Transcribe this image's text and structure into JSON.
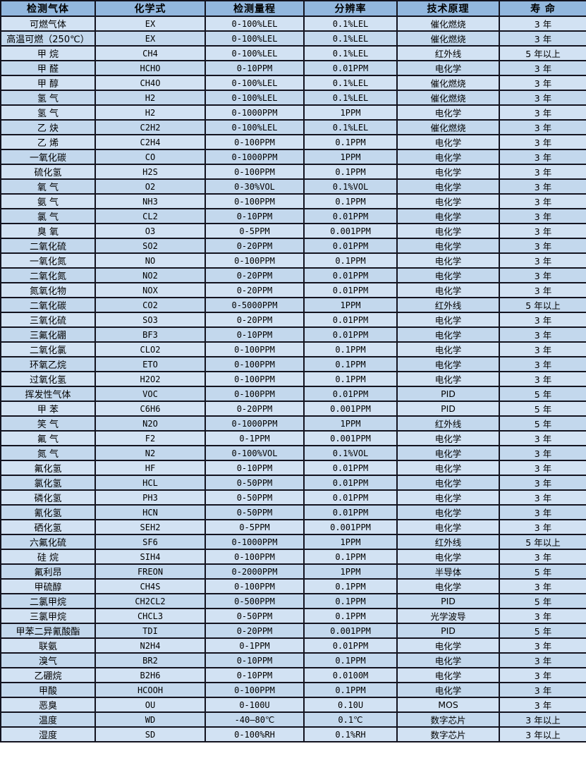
{
  "table": {
    "title": "gas-sensor-spec-table",
    "columns": [
      "检测气体",
      "化学式",
      "检测量程",
      "分辨率",
      "技术原理",
      "寿 命"
    ],
    "rows": [
      {
        "gas": "可燃气体",
        "formula": "EX",
        "range": "0-100%LEL",
        "resolution": "0.1%LEL",
        "principle": "催化燃烧",
        "lifespan": "3 年"
      },
      {
        "gas": "高温可燃（250℃）",
        "formula": "EX",
        "range": "0-100%LEL",
        "resolution": "0.1%LEL",
        "principle": "催化燃烧",
        "lifespan": "3 年"
      },
      {
        "gas": "甲 烷",
        "formula": "CH4",
        "range": "0-100%LEL",
        "resolution": "0.1%LEL",
        "principle": "红外线",
        "lifespan": "5 年以上"
      },
      {
        "gas": "甲 醛",
        "formula": "HCHO",
        "range": "0-10PPM",
        "resolution": "0.01PPM",
        "principle": "电化学",
        "lifespan": "3 年"
      },
      {
        "gas": "甲 醇",
        "formula": "CH4O",
        "range": "0-100%LEL",
        "resolution": "0.1%LEL",
        "principle": "催化燃烧",
        "lifespan": "3 年"
      },
      {
        "gas": "氢 气",
        "formula": "H2",
        "range": "0-100%LEL",
        "resolution": "0.1%LEL",
        "principle": "催化燃烧",
        "lifespan": "3 年"
      },
      {
        "gas": "氢 气",
        "formula": "H2",
        "range": "0-1000PPM",
        "resolution": "1PPM",
        "principle": "电化学",
        "lifespan": "3 年"
      },
      {
        "gas": "乙 炔",
        "formula": "C2H2",
        "range": "0-100%LEL",
        "resolution": "0.1%LEL",
        "principle": "催化燃烧",
        "lifespan": "3 年"
      },
      {
        "gas": "乙 烯",
        "formula": "C2H4",
        "range": "0-100PPM",
        "resolution": "0.1PPM",
        "principle": "电化学",
        "lifespan": "3 年"
      },
      {
        "gas": "一氧化碳",
        "formula": "CO",
        "range": "0-1000PPM",
        "resolution": "1PPM",
        "principle": "电化学",
        "lifespan": "3 年"
      },
      {
        "gas": "硫化氢",
        "formula": "H2S",
        "range": "0-100PPM",
        "resolution": "0.1PPM",
        "principle": "电化学",
        "lifespan": "3 年"
      },
      {
        "gas": "氧 气",
        "formula": "O2",
        "range": "0-30%VOL",
        "resolution": "0.1%VOL",
        "principle": "电化学",
        "lifespan": "3 年"
      },
      {
        "gas": "氨 气",
        "formula": "NH3",
        "range": "0-100PPM",
        "resolution": "0.1PPM",
        "principle": "电化学",
        "lifespan": "3 年"
      },
      {
        "gas": "氯 气",
        "formula": "CL2",
        "range": "0-10PPM",
        "resolution": "0.01PPM",
        "principle": "电化学",
        "lifespan": "3 年"
      },
      {
        "gas": "臭 氧",
        "formula": "O3",
        "range": "0-5PPM",
        "resolution": "0.001PPM",
        "principle": "电化学",
        "lifespan": "3 年"
      },
      {
        "gas": "二氧化硫",
        "formula": "SO2",
        "range": "0-20PPM",
        "resolution": "0.01PPM",
        "principle": "电化学",
        "lifespan": "3 年"
      },
      {
        "gas": "一氧化氮",
        "formula": "NO",
        "range": "0-100PPM",
        "resolution": "0.1PPM",
        "principle": "电化学",
        "lifespan": "3 年"
      },
      {
        "gas": "二氧化氮",
        "formula": "NO2",
        "range": "0-20PPM",
        "resolution": "0.01PPM",
        "principle": "电化学",
        "lifespan": "3 年"
      },
      {
        "gas": "氮氧化物",
        "formula": "NOX",
        "range": "0-20PPM",
        "resolution": "0.01PPM",
        "principle": "电化学",
        "lifespan": "3 年"
      },
      {
        "gas": "二氧化碳",
        "formula": "CO2",
        "range": "0-5000PPM",
        "resolution": "1PPM",
        "principle": "红外线",
        "lifespan": "5 年以上"
      },
      {
        "gas": "三氧化硫",
        "formula": "SO3",
        "range": "0-20PPM",
        "resolution": "0.01PPM",
        "principle": "电化学",
        "lifespan": "3 年"
      },
      {
        "gas": "三氟化硼",
        "formula": "BF3",
        "range": "0-10PPM",
        "resolution": "0.01PPM",
        "principle": "电化学",
        "lifespan": "3 年"
      },
      {
        "gas": "二氧化氯",
        "formula": "CLO2",
        "range": "0-100PPM",
        "resolution": "0.1PPM",
        "principle": "电化学",
        "lifespan": "3 年"
      },
      {
        "gas": "环氧乙烷",
        "formula": "ETO",
        "range": "0-100PPM",
        "resolution": "0.1PPM",
        "principle": "电化学",
        "lifespan": "3 年"
      },
      {
        "gas": "过氧化氢",
        "formula": "H2O2",
        "range": "0-100PPM",
        "resolution": "0.1PPM",
        "principle": "电化学",
        "lifespan": "3 年"
      },
      {
        "gas": "挥发性气体",
        "formula": "VOC",
        "range": "0-100PPM",
        "resolution": "0.01PPM",
        "principle": "PID",
        "lifespan": "5 年"
      },
      {
        "gas": "甲 苯",
        "formula": "C6H6",
        "range": "0-20PPM",
        "resolution": "0.001PPM",
        "principle": "PID",
        "lifespan": "5 年"
      },
      {
        "gas": "笑 气",
        "formula": "N2O",
        "range": "0-1000PPM",
        "resolution": "1PPM",
        "principle": "红外线",
        "lifespan": "5 年"
      },
      {
        "gas": "氟 气",
        "formula": "F2",
        "range": "0-1PPM",
        "resolution": "0.001PPM",
        "principle": "电化学",
        "lifespan": "3 年"
      },
      {
        "gas": "氮 气",
        "formula": "N2",
        "range": "0-100%VOL",
        "resolution": "0.1%VOL",
        "principle": "电化学",
        "lifespan": "3 年"
      },
      {
        "gas": "氟化氢",
        "formula": "HF",
        "range": "0-10PPM",
        "resolution": "0.01PPM",
        "principle": "电化学",
        "lifespan": "3 年"
      },
      {
        "gas": "氯化氢",
        "formula": "HCL",
        "range": "0-50PPM",
        "resolution": "0.01PPM",
        "principle": "电化学",
        "lifespan": "3 年"
      },
      {
        "gas": "磷化氢",
        "formula": "PH3",
        "range": "0-50PPM",
        "resolution": "0.01PPM",
        "principle": "电化学",
        "lifespan": "3 年"
      },
      {
        "gas": "氰化氢",
        "formula": "HCN",
        "range": "0-50PPM",
        "resolution": "0.01PPM",
        "principle": "电化学",
        "lifespan": "3 年"
      },
      {
        "gas": "硒化氢",
        "formula": "SEH2",
        "range": "0-5PPM",
        "resolution": "0.001PPM",
        "principle": "电化学",
        "lifespan": "3 年"
      },
      {
        "gas": "六氟化硫",
        "formula": "SF6",
        "range": "0-1000PPM",
        "resolution": "1PPM",
        "principle": "红外线",
        "lifespan": "5 年以上"
      },
      {
        "gas": "硅 烷",
        "formula": "SIH4",
        "range": "0-100PPM",
        "resolution": "0.1PPM",
        "principle": "电化学",
        "lifespan": "3 年"
      },
      {
        "gas": "氟利昂",
        "formula": "FREON",
        "range": "0-2000PPM",
        "resolution": "1PPM",
        "principle": "半导体",
        "lifespan": "5 年"
      },
      {
        "gas": "甲硫醇",
        "formula": "CH4S",
        "range": "0-100PPM",
        "resolution": "0.1PPM",
        "principle": "电化学",
        "lifespan": "3 年"
      },
      {
        "gas": "二氯甲烷",
        "formula": "CH2CL2",
        "range": "0-500PPM",
        "resolution": "0.1PPM",
        "principle": "PID",
        "lifespan": "5 年"
      },
      {
        "gas": "三氯甲烷",
        "formula": "CHCL3",
        "range": "0-50PPM",
        "resolution": "0.1PPM",
        "principle": "光学波导",
        "lifespan": "3 年"
      },
      {
        "gas": "甲苯二异氰酸酯",
        "formula": "TDI",
        "range": "0-20PPM",
        "resolution": "0.001PPM",
        "principle": "PID",
        "lifespan": "5 年"
      },
      {
        "gas": "联氨",
        "formula": "N2H4",
        "range": "0-1PPM",
        "resolution": "0.01PPM",
        "principle": "电化学",
        "lifespan": "3 年"
      },
      {
        "gas": "溴气",
        "formula": "BR2",
        "range": "0-10PPM",
        "resolution": "0.1PPM",
        "principle": "电化学",
        "lifespan": "3 年"
      },
      {
        "gas": "乙硼烷",
        "formula": "B2H6",
        "range": "0-10PPM",
        "resolution": "0.0100M",
        "principle": "电化学",
        "lifespan": "3 年"
      },
      {
        "gas": "甲酸",
        "formula": "HCOOH",
        "range": "0-100PPM",
        "resolution": "0.1PPM",
        "principle": "电化学",
        "lifespan": "3 年"
      },
      {
        "gas": "恶臭",
        "formula": "OU",
        "range": "0-100U",
        "resolution": "0.10U",
        "principle": "MOS",
        "lifespan": "3 年"
      },
      {
        "gas": "温度",
        "formula": "WD",
        "range": "-40—80℃",
        "resolution": "0.1℃",
        "principle": "数字芯片",
        "lifespan": "3 年以上"
      },
      {
        "gas": "湿度",
        "formula": "SD",
        "range": "0-100%RH",
        "resolution": "0.1%RH",
        "principle": "数字芯片",
        "lifespan": "3 年以上"
      }
    ]
  },
  "colors": {
    "header_bg": "#92b7de",
    "row_odd_bg": "#d2e2f3",
    "row_even_bg": "#c3d8ed",
    "border": "#13131f",
    "text": "#000000"
  }
}
